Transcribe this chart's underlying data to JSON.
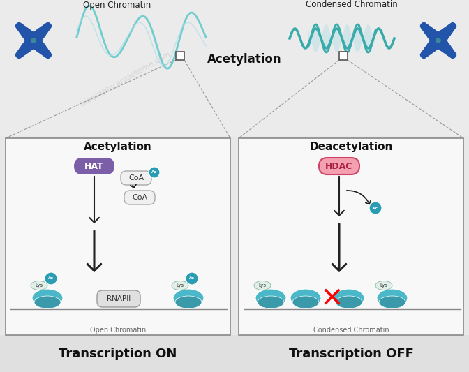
{
  "background_color": "#f0f0f0",
  "top_labels": {
    "left": "Open Chromatin",
    "right": "Condensed Chromatin",
    "center": "Acetylation"
  },
  "bottom_labels": {
    "left": "Transcription ON",
    "right": "Transcription OFF"
  },
  "panel_labels": {
    "left": "Acetylation",
    "right": "Deacetylation"
  },
  "enzyme_labels": {
    "left": "HAT",
    "right": "HDAC"
  },
  "coa_labels": [
    "CoA",
    "CoA"
  ],
  "chromatin_labels": {
    "left": "Open Chromatin",
    "right": "Condensed Chromatin"
  },
  "colors": {
    "background": "#e8e8e8",
    "panel_fill": "#f8f8f8",
    "panel_border": "#888888",
    "hat_box": "#7b5ea7",
    "hat_text": "#ffffff",
    "hdac_box": "#e87a8a",
    "hdac_border": "#cc4466",
    "hdac_text": "#ffffff",
    "coa_box": "#f0f0f0",
    "coa_border": "#aaaaaa",
    "coa_text": "#333333",
    "ac_dot": "#2a9db5",
    "ac_text": "#ffffff",
    "arrow": "#222222",
    "chromosome_blue_dark": "#1a3a7a",
    "chromosome_blue_mid": "#2255aa",
    "chromosome_teal": "#3a8899",
    "chromatin_teal_light": "#5bc8c8",
    "chromatin_teal_dark": "#1a8a8a",
    "coil_teal": "#3aabab",
    "nucleosome_teal": "#4ab8c8",
    "nucleosome_dark": "#3a9aaa",
    "rnapii_box": "#e0e0e0",
    "rnapii_border": "#999999",
    "rnapii_text": "#333333",
    "lys_fill": "#e0f0e8",
    "lys_border": "#99bbaa",
    "lys_text": "#333333",
    "dna_line": "#888888",
    "top_label_color": "#222222",
    "bottom_label_color": "#111111",
    "panel_label_color": "#111111",
    "zoom_line": "#999999",
    "sq_fill": "#ffffff",
    "sq_border": "#555555"
  },
  "watermark": "biography.aroadtome.com"
}
